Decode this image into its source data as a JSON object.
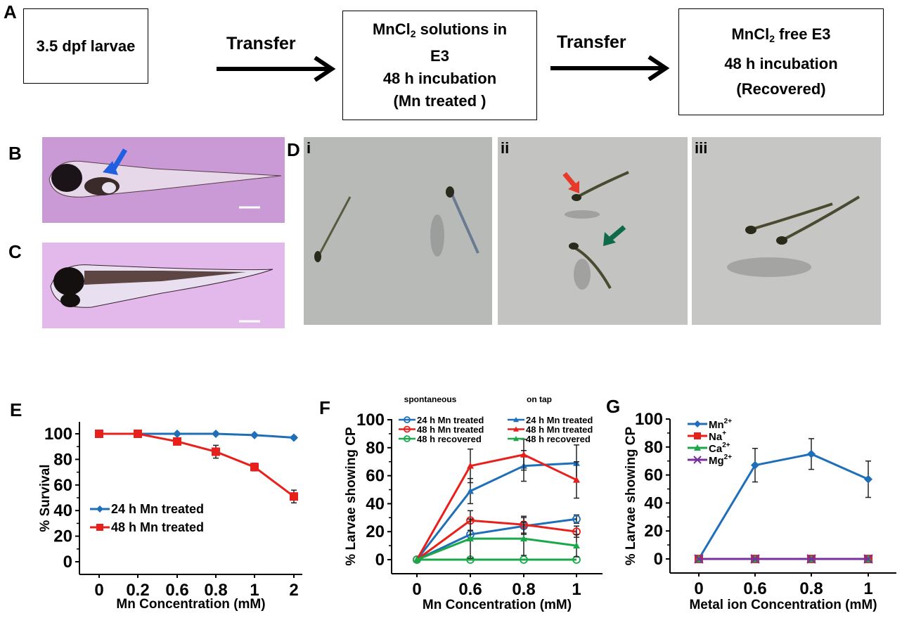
{
  "panels": {
    "A": "A",
    "B": "B",
    "C": "C",
    "D": "D",
    "E": "E",
    "F": "F",
    "G": "G",
    "Di": "i",
    "Dii": "ii",
    "Diii": "iii"
  },
  "flow": {
    "box1": "3.5 dpf larvae",
    "arrow1": "Transfer",
    "box2": {
      "line1a": "MnCl",
      "line1sub": "2",
      "line1b": " solutions in",
      "line2": "E3",
      "line3": "48 h incubation",
      "line4": "(Mn treated )"
    },
    "arrow2": "Transfer",
    "box3": {
      "line1a": "MnCl",
      "line1sub": "2",
      "line1b": " free E3",
      "line2": "48 h incubation",
      "line3": "(Recovered)"
    }
  },
  "colors": {
    "blue": "#1f6fb8",
    "red": "#e8201c",
    "green": "#1aa84a",
    "purple": "#7a2fa0"
  },
  "chart_data": [
    {
      "id": "E",
      "type": "line",
      "xlabel": "Mn Concentration (mM)",
      "ylabel": "% Survival",
      "ylim": [
        -10,
        110
      ],
      "yticks": [
        0,
        20,
        40,
        60,
        80,
        100
      ],
      "categories": [
        "0",
        "0.2",
        "0.6",
        "0.8",
        "1",
        "2"
      ],
      "legend_position": "center-left",
      "series": [
        {
          "name": "24 h Mn treated",
          "color": "#1f6fb8",
          "marker": "diamond",
          "values": [
            100,
            100,
            100,
            100,
            99,
            97
          ],
          "err": [
            0,
            0,
            0,
            0,
            0,
            1
          ]
        },
        {
          "name": "48 h Mn treated",
          "color": "#e8201c",
          "marker": "square",
          "values": [
            100,
            100,
            94,
            86,
            74,
            51
          ],
          "err": [
            0,
            0,
            2,
            5,
            3,
            5
          ]
        }
      ]
    },
    {
      "id": "F",
      "type": "line",
      "xlabel": "Mn Concentration (mM)",
      "ylabel": "% Larvae showing CP",
      "ylim": [
        -10,
        100
      ],
      "yticks": [
        0,
        20,
        40,
        60,
        80,
        100
      ],
      "categories": [
        "0",
        "0.6",
        "0.8",
        "1"
      ],
      "legend_groups": [
        "spontaneous",
        "on tap"
      ],
      "legend_position": "top",
      "series": [
        {
          "name": "24 h Mn treated",
          "group": "spontaneous",
          "color": "#1f6fb8",
          "marker": "circle",
          "values": [
            0,
            18,
            24,
            29
          ],
          "err": [
            0,
            3,
            6,
            3
          ]
        },
        {
          "name": "48 h Mn treated",
          "group": "spontaneous",
          "color": "#e8201c",
          "marker": "circle",
          "values": [
            0,
            28,
            25,
            20
          ],
          "err": [
            0,
            7,
            6,
            4
          ]
        },
        {
          "name": "48 h recovered",
          "group": "spontaneous",
          "color": "#1aa84a",
          "marker": "circle",
          "values": [
            0,
            0,
            0,
            0
          ],
          "err": [
            0,
            0,
            0,
            0
          ]
        },
        {
          "name": "24 h Mn treated",
          "group": "on tap",
          "color": "#1f6fb8",
          "marker": "triangle",
          "values": [
            0,
            49,
            67,
            69
          ],
          "err": [
            0,
            9,
            11,
            13
          ]
        },
        {
          "name": "48 h Mn treated",
          "group": "on tap",
          "color": "#e8201c",
          "marker": "triangle",
          "values": [
            0,
            67,
            75,
            57
          ],
          "err": [
            0,
            12,
            11,
            13
          ]
        },
        {
          "name": "48 h recovered",
          "group": "on tap",
          "color": "#1aa84a",
          "marker": "triangle",
          "values": [
            0,
            15,
            15,
            10
          ],
          "err": [
            0,
            14,
            12,
            8
          ]
        }
      ]
    },
    {
      "id": "G",
      "type": "line",
      "xlabel": "Metal ion Concentration (mM)",
      "ylabel": "% Larvae showing CP",
      "ylim": [
        -10,
        100
      ],
      "yticks": [
        0,
        20,
        40,
        60,
        80,
        100
      ],
      "categories": [
        "0",
        "0.6",
        "0.8",
        "1"
      ],
      "legend_position": "top-left",
      "series": [
        {
          "name": "Mn",
          "sup": "2+",
          "color": "#1f6fb8",
          "marker": "diamond",
          "values": [
            0,
            67,
            75,
            57
          ],
          "err": [
            0,
            12,
            11,
            13
          ]
        },
        {
          "name": "Na",
          "sup": "+",
          "color": "#e8201c",
          "marker": "square",
          "values": [
            0,
            0,
            0,
            0
          ],
          "err": [
            0,
            0,
            0,
            0
          ]
        },
        {
          "name": "Ca",
          "sup": "2+",
          "color": "#1aa84a",
          "marker": "triangle",
          "values": [
            0,
            0,
            0,
            0
          ],
          "err": [
            0,
            0,
            0,
            0
          ]
        },
        {
          "name": "Mg",
          "sup": "2+",
          "color": "#7a2fa0",
          "marker": "x",
          "values": [
            0,
            0,
            0,
            0
          ],
          "err": [
            0,
            0,
            0,
            0
          ]
        }
      ]
    }
  ]
}
